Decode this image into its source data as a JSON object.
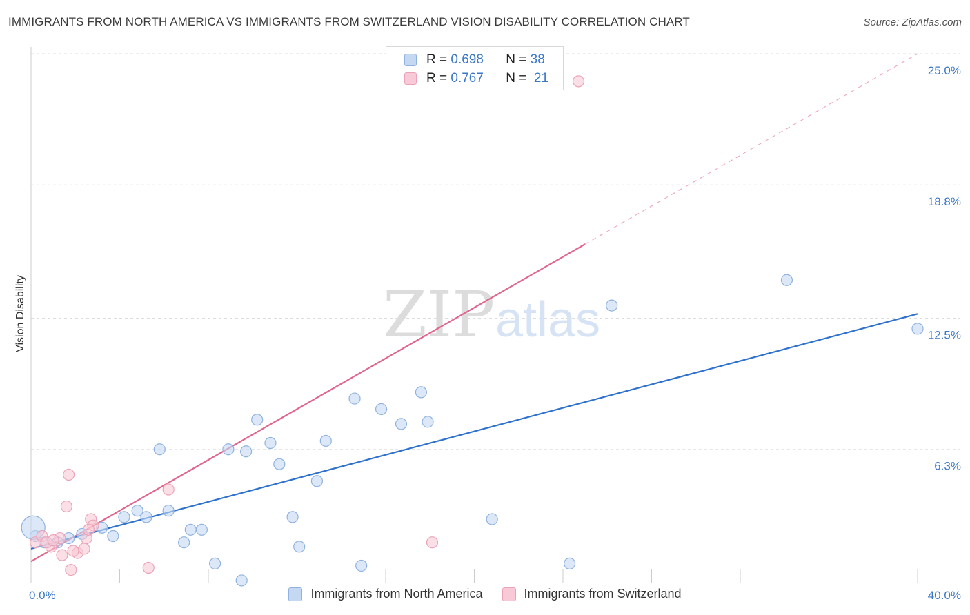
{
  "title": "IMMIGRANTS FROM NORTH AMERICA VS IMMIGRANTS FROM SWITZERLAND VISION DISABILITY CORRELATION CHART",
  "source": "Source: ZipAtlas.com",
  "watermark": {
    "zip": "ZIP",
    "atlas": "atlas"
  },
  "legend": {
    "series1": {
      "r_label": "R =",
      "r_value": "0.698",
      "n_label": "N =",
      "n_value": "38"
    },
    "series2": {
      "r_label": "R =",
      "r_value": "0.767",
      "n_label": "N =",
      "n_value": "21"
    }
  },
  "colors": {
    "blue_fill": "#c5d8f2",
    "blue_stroke": "#8fb2e0",
    "blue_line": "#2f72cc",
    "pink_fill": "#f8c9d6",
    "pink_stroke": "#eba3b8",
    "pink_line": "#e0668c",
    "grid": "#dddddd",
    "tick_text": "#3b78c8"
  },
  "chart_data": {
    "type": "scatter",
    "title": "IMMIGRANTS FROM NORTH AMERICA VS IMMIGRANTS FROM SWITZERLAND VISION DISABILITY CORRELATION CHART",
    "xlabel": "",
    "ylabel": "Vision Disability",
    "xlim": [
      0,
      40
    ],
    "ylim": [
      0,
      25
    ],
    "x_tick_labels": [
      "0.0%",
      "40.0%"
    ],
    "y_ticks": [
      6.3,
      12.5,
      18.8,
      25.0
    ],
    "y_tick_labels": [
      "6.3%",
      "12.5%",
      "18.8%",
      "25.0%"
    ],
    "grid": true,
    "series": [
      {
        "name": "Immigrants from North America",
        "color": "blue",
        "R": 0.698,
        "N": 38,
        "trend": {
          "x": [
            0,
            40
          ],
          "y": [
            1.6,
            12.7
          ],
          "dashed_extension": false
        },
        "points": [
          [
            0.2,
            2.2
          ],
          [
            0.6,
            1.9
          ],
          [
            1.2,
            1.9
          ],
          [
            1.7,
            2.1
          ],
          [
            2.3,
            2.3
          ],
          [
            3.2,
            2.6
          ],
          [
            3.7,
            2.2
          ],
          [
            4.2,
            3.1
          ],
          [
            4.8,
            3.4
          ],
          [
            5.2,
            3.1
          ],
          [
            5.8,
            6.3
          ],
          [
            6.2,
            3.4
          ],
          [
            6.9,
            1.9
          ],
          [
            7.2,
            2.5
          ],
          [
            7.7,
            2.5
          ],
          [
            8.3,
            0.9
          ],
          [
            8.9,
            6.3
          ],
          [
            9.5,
            0.1
          ],
          [
            9.7,
            6.2
          ],
          [
            10.2,
            7.7
          ],
          [
            10.8,
            6.6
          ],
          [
            11.2,
            5.6
          ],
          [
            11.8,
            3.1
          ],
          [
            12.1,
            1.7
          ],
          [
            12.9,
            4.8
          ],
          [
            13.3,
            6.7
          ],
          [
            14.6,
            8.7
          ],
          [
            14.9,
            0.8
          ],
          [
            15.8,
            8.2
          ],
          [
            16.7,
            7.5
          ],
          [
            17.6,
            9.0
          ],
          [
            17.9,
            7.6
          ],
          [
            20.8,
            3.0
          ],
          [
            24.3,
            0.9
          ],
          [
            26.2,
            13.1
          ],
          [
            34.1,
            14.3
          ],
          [
            40.0,
            12.0
          ],
          [
            0.1,
            2.6
          ]
        ]
      },
      {
        "name": "Immigrants from Switzerland",
        "color": "pink",
        "R": 0.767,
        "N": 21,
        "trend": {
          "x": [
            0,
            25
          ],
          "y": [
            1.0,
            16.0
          ],
          "dashed_extension": {
            "x": [
              25,
              40
            ],
            "y": [
              16.0,
              25.0
            ]
          }
        },
        "points": [
          [
            0.2,
            1.9
          ],
          [
            0.5,
            2.2
          ],
          [
            0.9,
            1.7
          ],
          [
            1.3,
            2.1
          ],
          [
            1.4,
            1.3
          ],
          [
            1.7,
            5.1
          ],
          [
            1.6,
            3.6
          ],
          [
            1.8,
            0.6
          ],
          [
            2.1,
            1.4
          ],
          [
            2.4,
            1.6
          ],
          [
            2.5,
            2.1
          ],
          [
            2.7,
            3.0
          ],
          [
            2.8,
            2.7
          ],
          [
            5.3,
            0.7
          ],
          [
            6.2,
            4.4
          ],
          [
            18.1,
            1.9
          ],
          [
            24.7,
            23.7
          ],
          [
            0.7,
            1.9
          ],
          [
            1.0,
            2.0
          ],
          [
            2.6,
            2.5
          ],
          [
            1.9,
            1.5
          ]
        ]
      }
    ],
    "legend_position": "top-center"
  },
  "bottom_legend": {
    "item1": "Immigrants from North America",
    "item2": "Immigrants from Switzerland"
  }
}
